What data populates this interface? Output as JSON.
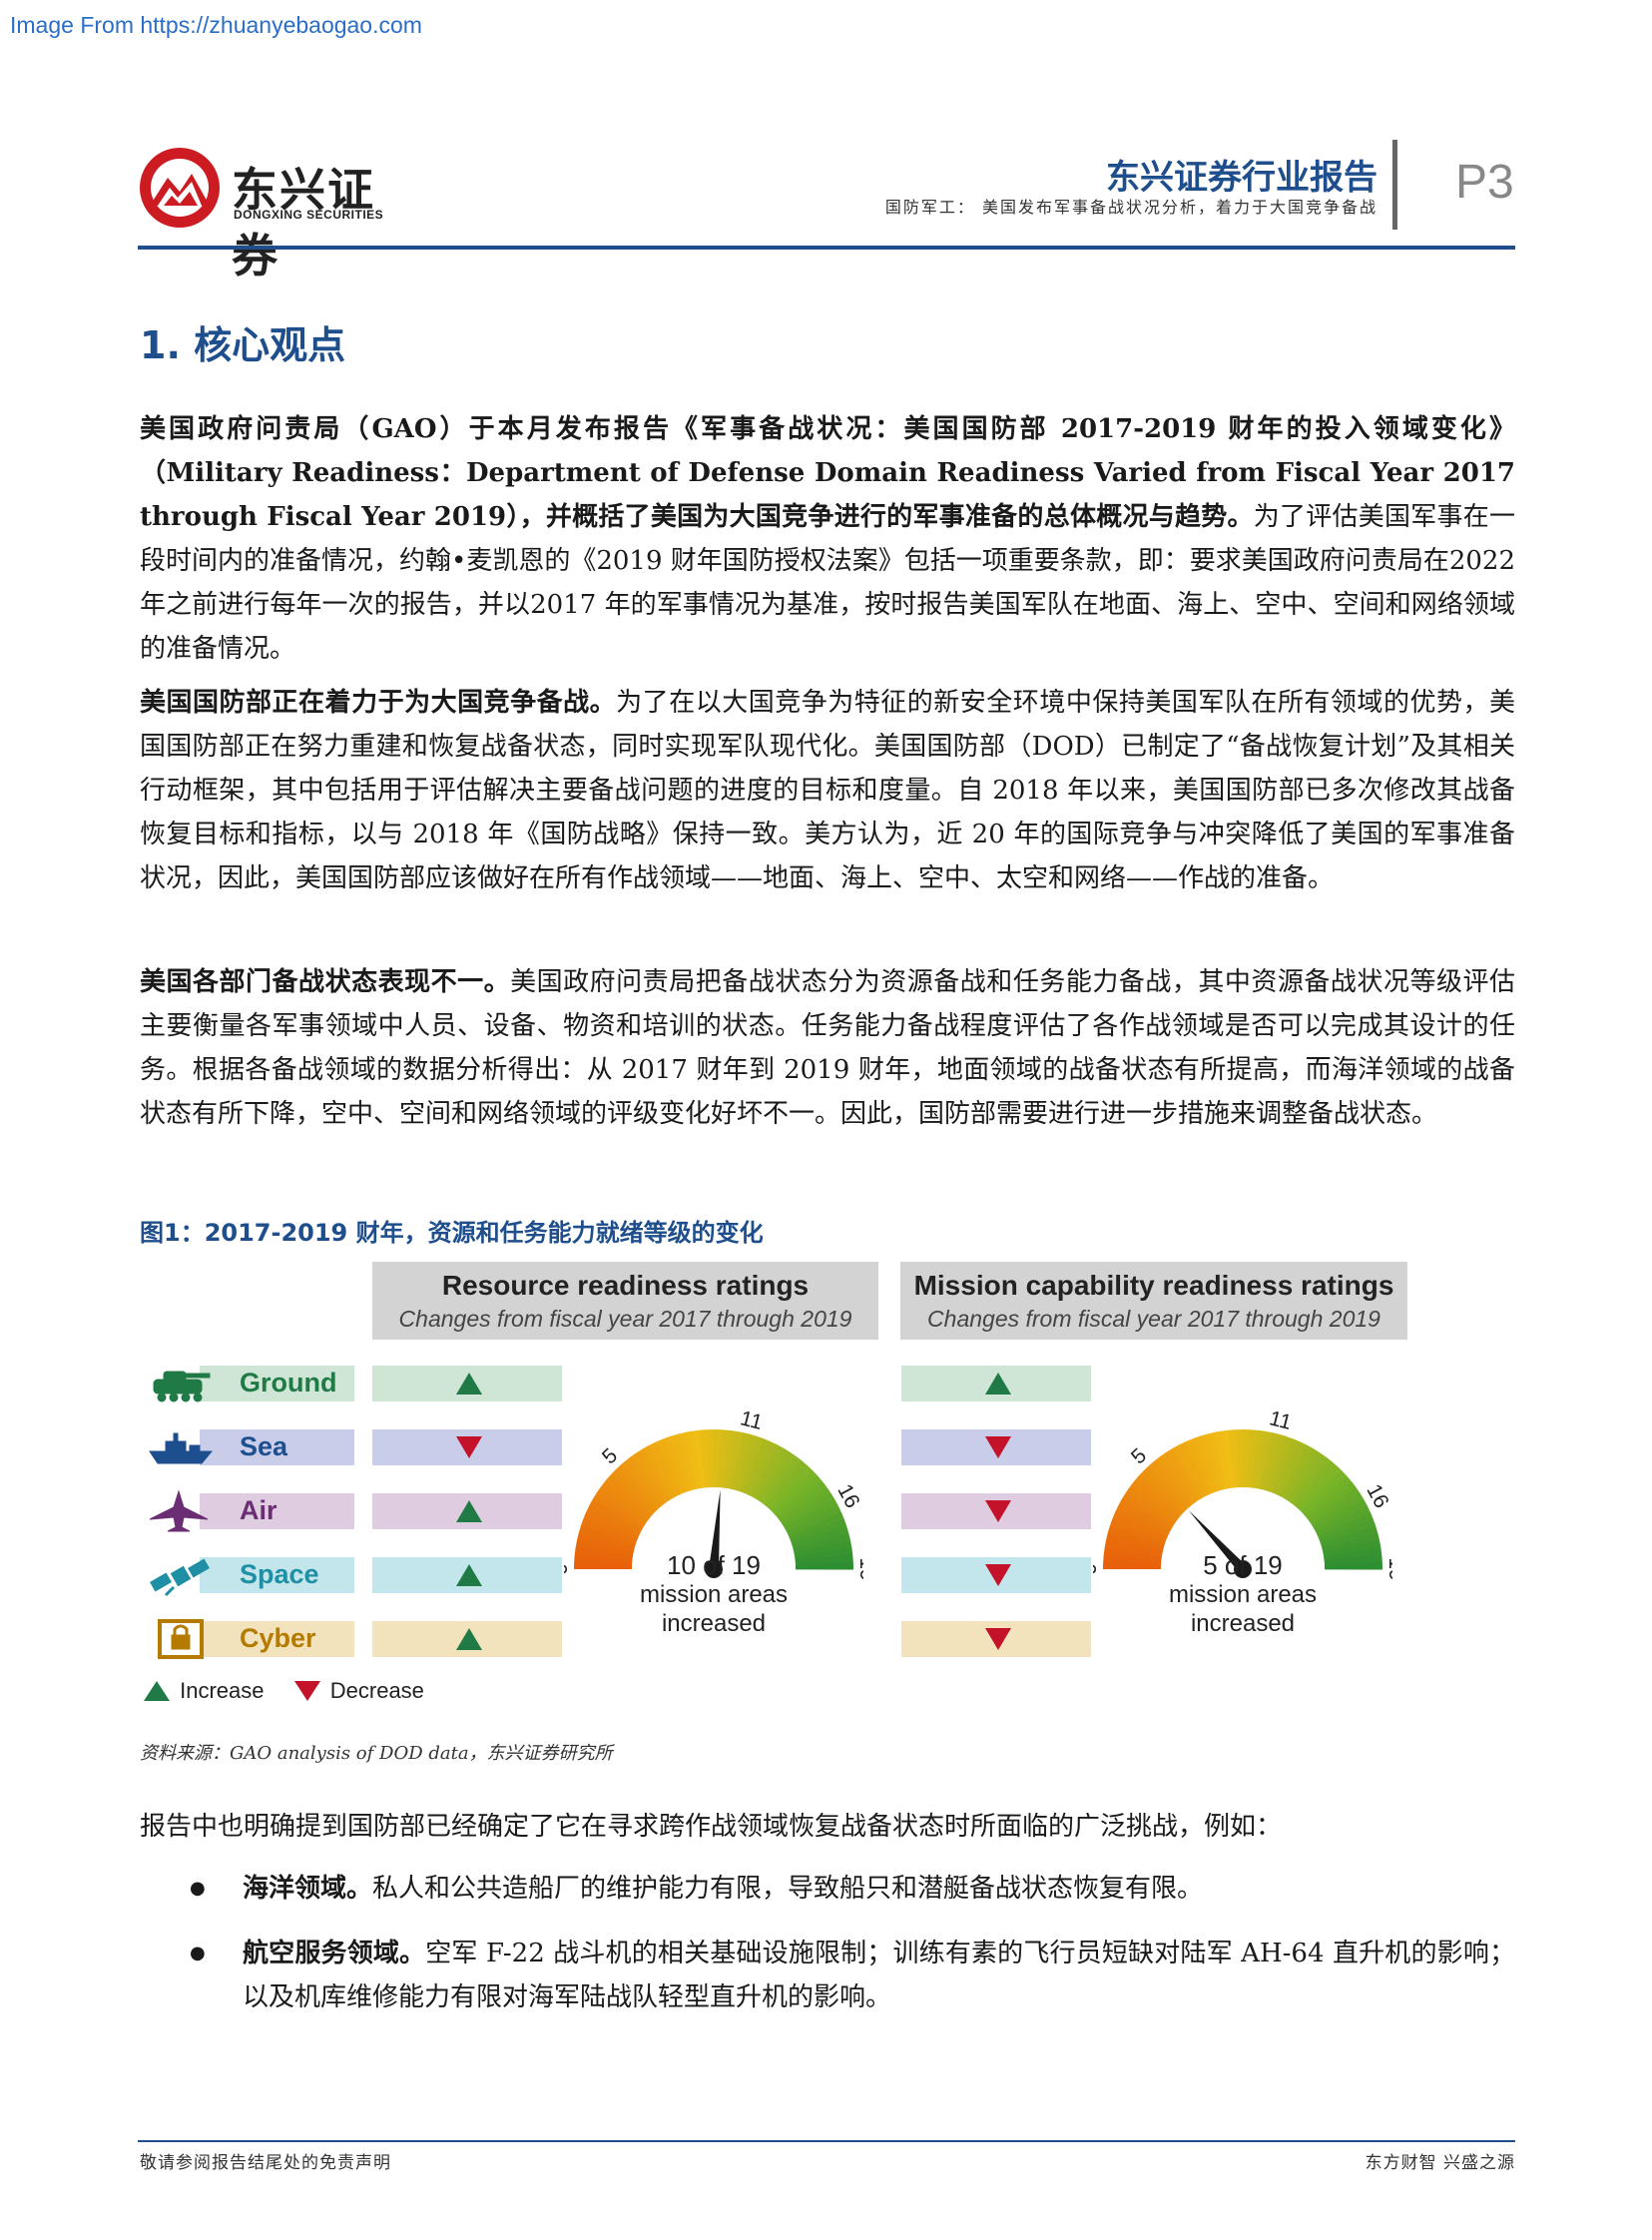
{
  "source_url": "Image From https://zhuanyebaogao.com",
  "header": {
    "logo_cn": "东兴证券",
    "logo_en": "DONGXING SECURITIES",
    "report_title": "东兴证券行业报告",
    "report_subtitle": "国防军工： 美国发布军事备战状况分析，着力于大国竞争备战",
    "page_number": "P3",
    "brand_color": "#1f4e8c"
  },
  "section": {
    "title": "1. 核心观点"
  },
  "paragraphs": [
    {
      "bold": "美国政府问责局（GAO）于本月发布报告《军事备战状况：美国国防部 2017-2019 财年的投入领域变化》（Military Readiness：Department of Defense Domain Readiness Varied from Fiscal Year 2017 through Fiscal Year 2019），并概括了美国为大国竞争进行的军事准备的总体概况与趋势。",
      "text": "为了评估美国军事在一段时间内的准备情况，约翰•麦凯恩的《2019 财年国防授权法案》包括一项重要条款，即：要求美国政府问责局在2022 年之前进行每年一次的报告，并以2017 年的军事情况为基准，按时报告美国军队在地面、海上、空中、空间和网络领域的准备情况。"
    },
    {
      "bold": "美国国防部正在着力于为大国竞争备战。",
      "text": "为了在以大国竞争为特征的新安全环境中保持美国军队在所有领域的优势，美国国防部正在努力重建和恢复战备状态，同时实现军队现代化。美国国防部（DOD）已制定了“备战恢复计划”及其相关行动框架，其中包括用于评估解决主要备战问题的进度的目标和度量。自 2018 年以来，美国国防部已多次修改其战备恢复目标和指标，以与 2018 年《国防战略》保持一致。美方认为，近 20 年的国际竞争与冲突降低了美国的军事准备状况，因此，美国国防部应该做好在所有作战领域——地面、海上、空中、太空和网络——作战的准备。"
    },
    {
      "bold": "美国各部门备战状态表现不一。",
      "text": "美国政府问责局把备战状态分为资源备战和任务能力备战，其中资源备战状况等级评估主要衡量各军事领域中人员、设备、物资和培训的状态。任务能力备战程度评估了各作战领域是否可以完成其设计的任务。根据各备战领域的数据分析得出：从 2017 财年到 2019 财年，地面领域的战备状态有所提高，而海洋领域的战备状态有所下降，空中、空间和网络领域的评级变化好坏不一。因此，国防部需要进行进一步措施来调整备战状态。"
    }
  ],
  "figure": {
    "caption": "图1：2017-2019 财年，资源和任务能力就绪等级的变化",
    "source": "资料来源：GAO analysis of DOD data，东兴证券研究所",
    "resource_title": "Resource readiness ratings",
    "resource_subtitle": "Changes from fiscal year 2017 through 2019",
    "mission_title": "Mission capability readiness ratings",
    "mission_subtitle": "Changes from fiscal year 2017 through 2019",
    "domains": [
      {
        "label": "Ground",
        "icon": "tank-icon",
        "color": "#1f7a45",
        "bg": "#cfe5d6",
        "resource": "increase",
        "mission": "increase"
      },
      {
        "label": "Sea",
        "icon": "ship-icon",
        "color": "#1d4f8f",
        "bg": "#c9cde9",
        "resource": "decrease",
        "mission": "decrease"
      },
      {
        "label": "Air",
        "icon": "jet-icon",
        "color": "#6b2d73",
        "bg": "#e0cce0",
        "resource": "increase",
        "mission": "decrease"
      },
      {
        "label": "Space",
        "icon": "satellite-icon",
        "color": "#1f8fa5",
        "bg": "#c3e6ec",
        "resource": "increase",
        "mission": "decrease"
      },
      {
        "label": "Cyber",
        "icon": "lock-icon",
        "color": "#b57a00",
        "bg": "#f2e3bd",
        "resource": "increase",
        "mission": "decrease"
      }
    ],
    "gauge_ticks": [
      "0",
      "5",
      "11",
      "16",
      "19"
    ],
    "resource_gauge": {
      "value": 10,
      "max": 19,
      "main": "10 of 19",
      "sub1": "mission areas",
      "sub2": "increased"
    },
    "mission_gauge": {
      "value": 5,
      "max": 19,
      "main": "5 of 19",
      "sub1": "mission areas",
      "sub2": "increased"
    },
    "legend_increase": "Increase",
    "legend_decrease": "Decrease",
    "increase_color": "#1f7a45",
    "decrease_color": "#c3122a"
  },
  "after_figure": {
    "intro": "报告中也明确提到国防部已经确定了它在寻求跨作战领域恢复战备状态时所面临的广泛挑战，例如：",
    "bullets": [
      {
        "bold": "海洋领域。",
        "text": "私人和公共造船厂的维护能力有限，导致船只和潜艇备战状态恢复有限。"
      },
      {
        "bold": "航空服务领域。",
        "text": "空军 F-22 战斗机的相关基础设施限制；训练有素的飞行员短缺对陆军 AH-64 直升机的影响；以及机库维修能力有限对海军陆战队轻型直升机的影响。"
      }
    ]
  },
  "footer": {
    "left": "敬请参阅报告结尾处的免责声明",
    "right": "东方财智 兴盛之源"
  }
}
